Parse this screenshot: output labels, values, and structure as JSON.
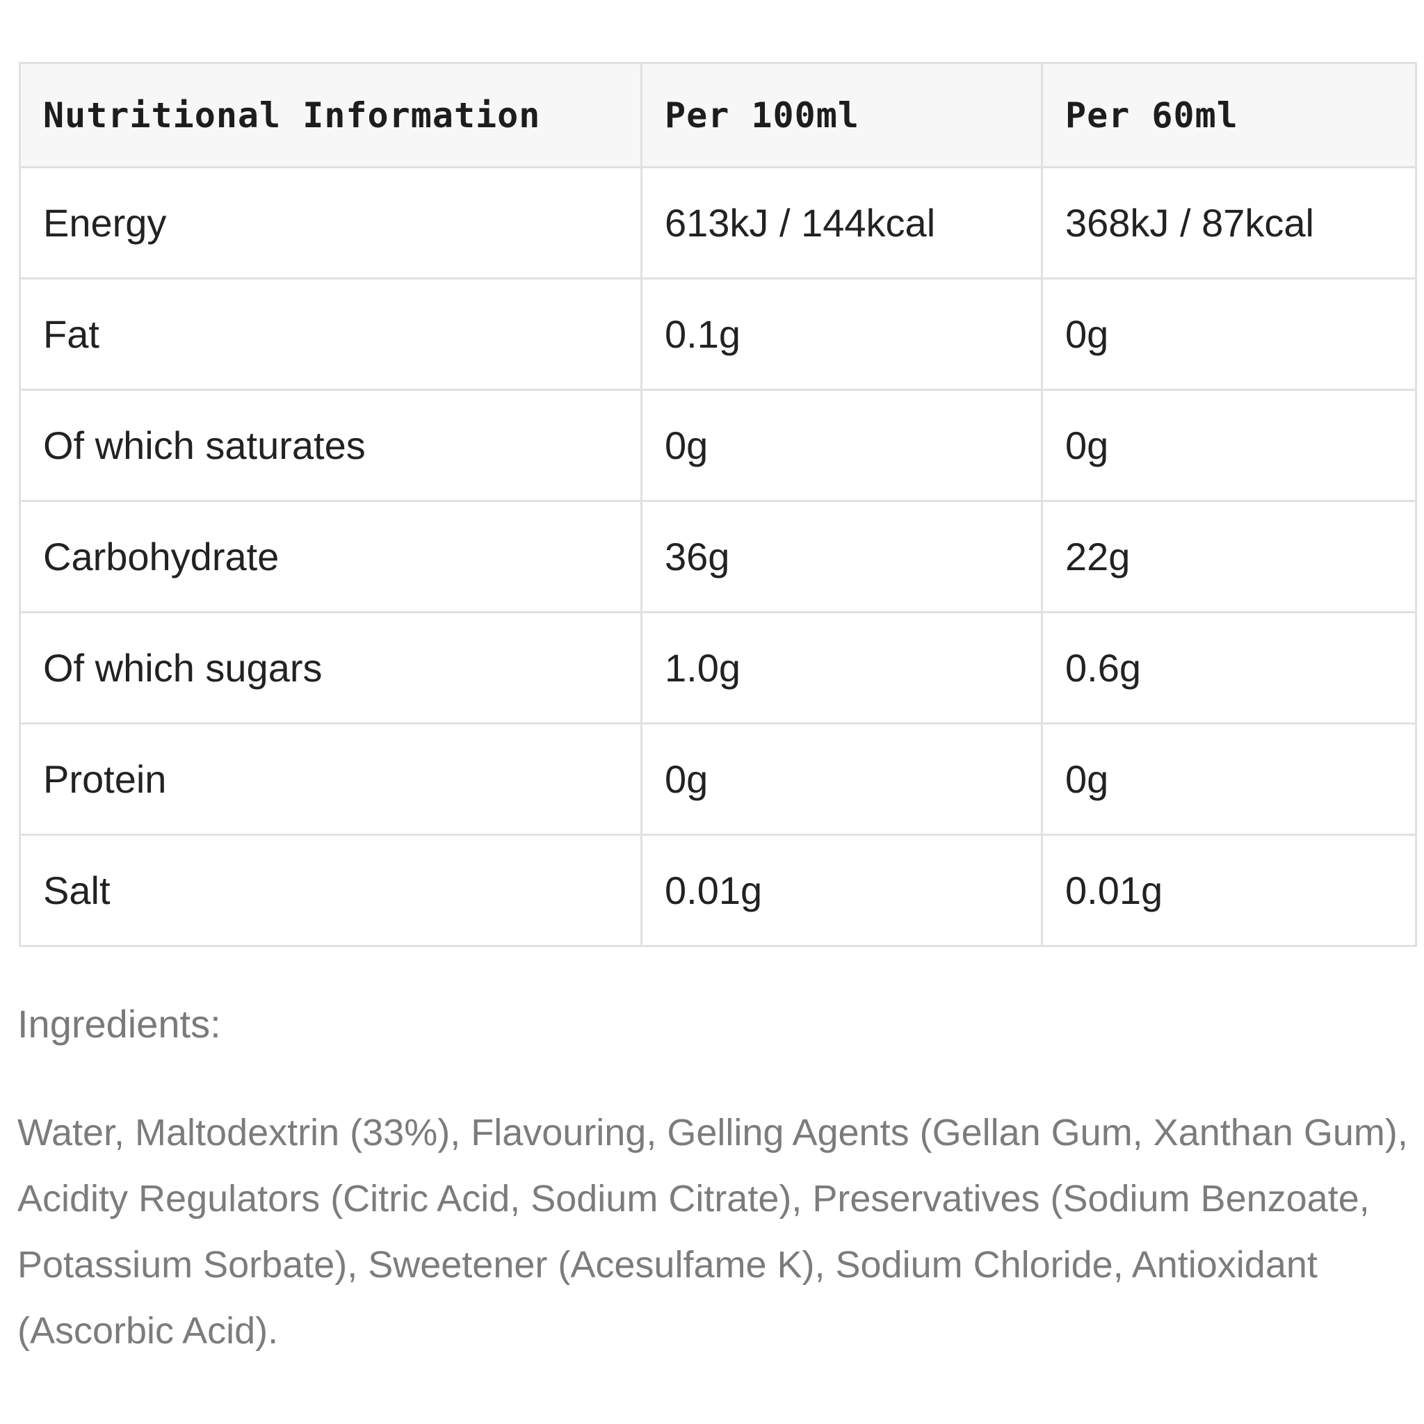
{
  "nutrition_table": {
    "headers": [
      "Nutritional Information",
      "Per 100ml",
      "Per 60ml"
    ],
    "rows": [
      [
        "Energy",
        "613kJ / 144kcal",
        "368kJ / 87kcal"
      ],
      [
        "Fat",
        "0.1g",
        "0g"
      ],
      [
        "Of which saturates",
        "0g",
        "0g"
      ],
      [
        "Carbohydrate",
        "36g",
        "22g"
      ],
      [
        "Of which sugars",
        "1.0g",
        "0.6g"
      ],
      [
        "Protein",
        "0g",
        "0g"
      ],
      [
        "Salt",
        "0.01g",
        "0.01g"
      ]
    ]
  },
  "ingredients": {
    "heading": "Ingredients:",
    "text": "Water, Maltodextrin (33%), Flavouring, Gelling Agents (Gellan Gum, Xanthan Gum), Acidity Regulators (Citric Acid, Sodium Citrate), Preservatives (Sodium Benzoate, Potassium Sorbate), Sweetener (Acesulfame K), Sodium Chloride, Antioxidant (Ascorbic Acid)."
  }
}
